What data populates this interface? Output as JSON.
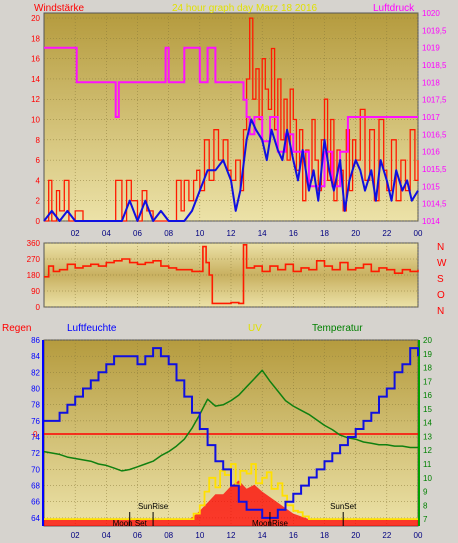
{
  "colors": {
    "background": "#d6d3ce",
    "plot_top": "#b8a048",
    "plot_bottom": "#e8dca0",
    "wind": "#ff1a00",
    "wind_avg": "#1010e0",
    "pressure": "#ff10ff",
    "direction": "#ff1a00",
    "humidity": "#1010e0",
    "temperature": "#108010",
    "uv": "#ffe000",
    "solar": "#ff0000",
    "rain_line": "#ff0000",
    "label_red": "#ff0000",
    "label_magenta": "#ff00ff",
    "label_blue": "#0000ff",
    "label_yellow": "#e0e000",
    "label_green": "#008000"
  },
  "header": {
    "wind_label": "Windstärke",
    "title": "24 hour graph day   Marz 18 2016",
    "pressure_label": "Luftdruck"
  },
  "compass": [
    "N",
    "W",
    "S",
    "O",
    "N"
  ],
  "bottom_header": {
    "rain_label": "Regen",
    "humidity_label": "Luftfeuchte",
    "uv_label": "UV",
    "temp_label": "Temperatur"
  },
  "annotations": {
    "moon_set": "Moon Set",
    "sun_rise": "SunRise",
    "moon_rise": "MoonRise",
    "sun_set": "SunSet",
    "rain_value": "0"
  },
  "chart_data": [
    {
      "type": "line",
      "name": "wind-pressure-panel",
      "title": "24 hour graph day   Marz 18 2016",
      "x_ticks": [
        "02",
        "04",
        "06",
        "08",
        "10",
        "12",
        "14",
        "16",
        "18",
        "20",
        "22",
        "00"
      ],
      "xlim": [
        0,
        24
      ],
      "y_left": {
        "label": "Windstärke",
        "ticks": [
          0,
          2,
          4,
          6,
          8,
          10,
          12,
          14,
          16,
          18,
          20
        ],
        "lim": [
          0,
          20.5
        ]
      },
      "y_right": {
        "label": "Luftdruck",
        "ticks": [
          "1014",
          "1014,5",
          "1015",
          "1015,5",
          "1016",
          "1016,5",
          "1017",
          "1017,5",
          "1018",
          "1018,5",
          "1019",
          "1019,5",
          "1020"
        ],
        "lim": [
          1014,
          1020
        ]
      },
      "series": [
        {
          "name": "wind",
          "axis": "left",
          "x": [
            0,
            0.3,
            0.5,
            0.8,
            1,
            1.3,
            1.6,
            2,
            2.5,
            3,
            3.5,
            4,
            4.3,
            4.6,
            5,
            5.3,
            5.6,
            6,
            6.3,
            6.6,
            7,
            7.5,
            8,
            8.5,
            8.8,
            9,
            9.3,
            9.6,
            9.8,
            10,
            10.3,
            10.6,
            10.9,
            11.2,
            11.5,
            11.8,
            12,
            12.3,
            12.6,
            12.8,
            13,
            13.2,
            13.4,
            13.6,
            13.8,
            14,
            14.2,
            14.4,
            14.6,
            14.8,
            15,
            15.2,
            15.4,
            15.6,
            15.8,
            16,
            16.2,
            16.4,
            16.6,
            16.8,
            17,
            17.2,
            17.4,
            17.6,
            17.8,
            18,
            18.2,
            18.4,
            18.6,
            18.8,
            19,
            19.2,
            19.4,
            19.6,
            19.8,
            20,
            20.3,
            20.6,
            20.9,
            21.2,
            21.5,
            21.8,
            22,
            22.3,
            22.6,
            22.9,
            23.2,
            23.5,
            23.8,
            24
          ],
          "values": [
            0,
            4,
            0,
            3,
            1,
            4,
            0,
            1,
            0,
            0,
            0,
            0,
            0,
            4,
            0,
            4,
            2,
            0,
            3,
            1,
            0,
            0,
            0,
            4,
            1,
            4,
            2,
            4,
            5,
            3,
            8,
            4,
            9,
            6,
            8,
            5,
            4,
            6,
            3,
            9,
            14,
            20,
            12,
            15,
            10,
            16,
            13,
            11,
            17,
            9,
            14,
            8,
            12,
            6,
            13,
            10,
            5,
            9,
            2,
            7,
            4,
            10,
            6,
            3,
            8,
            12,
            4,
            10,
            2,
            7,
            5,
            1,
            9,
            3,
            8,
            6,
            11,
            4,
            9,
            2,
            10,
            5,
            3,
            8,
            2,
            6,
            3,
            9,
            4,
            6
          ]
        },
        {
          "name": "wind-average",
          "axis": "left",
          "x": [
            0,
            0.5,
            1,
            1.5,
            2,
            3,
            4,
            4.5,
            5,
            5.5,
            6,
            6.5,
            7,
            7.5,
            8,
            8.5,
            9,
            9.5,
            10,
            10.5,
            11,
            11.5,
            12,
            12.3,
            12.6,
            13,
            13.3,
            13.6,
            14,
            14.3,
            14.6,
            15,
            15.3,
            15.6,
            16,
            16.3,
            16.6,
            17,
            17.3,
            17.6,
            18,
            18.3,
            18.6,
            19,
            19.3,
            19.6,
            20,
            20.3,
            20.6,
            21,
            21.3,
            21.6,
            22,
            22.3,
            22.6,
            23,
            23.3,
            23.6,
            24
          ],
          "values": [
            0,
            1,
            0,
            1,
            0,
            0,
            0,
            0,
            0,
            2,
            0,
            2,
            0,
            1,
            0,
            0,
            0,
            1,
            3,
            5,
            5,
            6,
            4,
            1,
            3,
            8,
            10,
            9,
            8,
            6,
            9,
            7,
            6,
            9,
            6,
            4,
            7,
            3,
            5,
            2,
            8,
            5,
            3,
            6,
            1,
            4,
            6,
            5,
            3,
            5,
            2,
            6,
            4,
            2,
            5,
            3,
            4,
            2,
            3
          ]
        },
        {
          "name": "pressure",
          "axis": "right",
          "x": [
            0,
            2,
            2.1,
            2.3,
            4.3,
            4.6,
            4.8,
            5.5,
            7.5,
            7.8,
            8,
            8.8,
            9,
            9.5,
            10,
            10.5,
            11,
            11.5,
            12,
            12.5,
            12.8,
            13,
            13.2,
            13.5,
            14,
            14.5,
            15,
            15.5,
            16,
            16.5,
            17,
            17.5,
            18,
            18.5,
            19,
            19.5,
            20,
            21,
            22,
            23,
            24
          ],
          "values": [
            1019,
            1019,
            1018,
            1018,
            1018,
            1017,
            1018,
            1018,
            1018,
            1019,
            1018,
            1018,
            1019,
            1019,
            1018,
            1019,
            1018,
            1018,
            1018,
            1018,
            1017.5,
            1017,
            1016.5,
            1017,
            1016.3,
            1017,
            1016,
            1016.5,
            1016,
            1016,
            1015,
            1015,
            1016,
            1015,
            1016,
            1017,
            1017,
            1017,
            1017,
            1017,
            1017
          ]
        }
      ]
    },
    {
      "type": "line",
      "name": "wind-direction-panel",
      "xlim": [
        0,
        24
      ],
      "y_left": {
        "ticks": [
          0,
          90,
          180,
          270,
          360
        ],
        "lim": [
          0,
          360
        ]
      },
      "y_right": {
        "ticks": [
          "N",
          "W",
          "S",
          "O",
          "N"
        ]
      },
      "series": [
        {
          "name": "direction",
          "x": [
            0,
            0.3,
            0.6,
            1,
            1.5,
            2,
            2.5,
            3,
            3.5,
            4,
            4.5,
            5,
            5.5,
            6,
            6.5,
            7,
            7.5,
            8,
            8.5,
            9,
            9.5,
            10,
            10.2,
            10.4,
            10.6,
            10.8,
            11,
            11.5,
            12,
            12.5,
            12.8,
            13,
            13.2,
            13.5,
            14,
            14.5,
            15,
            15.5,
            16,
            16.5,
            17,
            17.5,
            18,
            18.5,
            19,
            19.5,
            20,
            20.5,
            21,
            21.5,
            22,
            22.5,
            23,
            23.5,
            24
          ],
          "values": [
            170,
            230,
            200,
            210,
            240,
            220,
            230,
            240,
            230,
            250,
            260,
            270,
            250,
            240,
            250,
            260,
            230,
            220,
            210,
            210,
            200,
            200,
            340,
            250,
            180,
            20,
            20,
            20,
            25,
            20,
            350,
            220,
            220,
            230,
            200,
            230,
            210,
            240,
            200,
            220,
            210,
            260,
            230,
            210,
            250,
            210,
            220,
            240,
            200,
            220,
            210,
            190,
            210,
            200,
            210
          ]
        }
      ]
    },
    {
      "type": "line",
      "name": "humidity-temperature-uv-panel",
      "x_ticks": [
        "02",
        "04",
        "06",
        "08",
        "10",
        "12",
        "14",
        "16",
        "18",
        "20",
        "22",
        "00"
      ],
      "xlim": [
        0,
        24
      ],
      "y_left": {
        "label": "Luftfeuchte",
        "ticks": [
          64,
          66,
          68,
          70,
          72,
          74,
          76,
          78,
          80,
          82,
          84,
          86
        ],
        "lim": [
          63,
          86
        ]
      },
      "y_right": {
        "label": "Temperatur",
        "ticks": [
          7,
          8,
          9,
          10,
          11,
          12,
          13,
          14,
          15,
          16,
          17,
          18,
          19,
          20
        ],
        "lim": [
          6.5,
          20
        ]
      },
      "rain_axis": {
        "label": "Regen",
        "ticks": [
          "0"
        ]
      },
      "series": [
        {
          "name": "humidity",
          "axis": "left",
          "x": [
            0,
            0.5,
            1,
            1.5,
            2,
            2.5,
            3,
            3.5,
            4,
            4.5,
            5,
            5.5,
            6,
            6.5,
            7,
            7.5,
            8,
            8.5,
            9,
            9.5,
            10,
            10.5,
            11,
            11.5,
            12,
            12.5,
            13,
            13.5,
            14,
            14.5,
            15,
            15.5,
            16,
            16.5,
            17,
            17.5,
            18,
            18.5,
            19,
            19.5,
            20,
            20.5,
            21,
            21.5,
            22,
            22.5,
            23,
            23.5,
            24
          ],
          "values": [
            76,
            76,
            77,
            78,
            79,
            80,
            81,
            82,
            83,
            84,
            84,
            84,
            83,
            84,
            85,
            84,
            83,
            81,
            79,
            77,
            75,
            73,
            71,
            70,
            68,
            66,
            65,
            65,
            64,
            64,
            65,
            66,
            67,
            68,
            69,
            70,
            71,
            72,
            73,
            74,
            75,
            76,
            77,
            79,
            80,
            82,
            83,
            85,
            84
          ]
        },
        {
          "name": "temperature",
          "axis": "right",
          "x": [
            0,
            0.5,
            1,
            1.5,
            2,
            2.5,
            3,
            3.5,
            4,
            4.5,
            5,
            5.5,
            6,
            6.5,
            7,
            7.5,
            8,
            8.5,
            9,
            9.5,
            10,
            10.5,
            11,
            11.5,
            12,
            12.5,
            13,
            13.5,
            14,
            14.5,
            15,
            15.5,
            16,
            16.5,
            17,
            17.5,
            18,
            18.5,
            19,
            19.5,
            20,
            20.5,
            21,
            21.5,
            22,
            22.5,
            23,
            23.5,
            24
          ],
          "values": [
            11.9,
            11.8,
            11.7,
            11.5,
            11.4,
            11.3,
            11.2,
            11.0,
            10.9,
            10.7,
            10.5,
            10.6,
            10.8,
            11.0,
            11.2,
            11.6,
            11.9,
            12.3,
            12.8,
            13.6,
            14.6,
            15.7,
            15.2,
            15.3,
            15.6,
            16.0,
            16.6,
            17.2,
            17.8,
            17.0,
            16.3,
            15.6,
            15.2,
            14.9,
            14.6,
            14.2,
            13.8,
            13.5,
            13.1,
            12.9,
            12.8,
            12.6,
            12.5,
            12.4,
            12.4,
            12.3,
            12.3,
            12.2,
            12.2
          ]
        },
        {
          "name": "uv",
          "axis": "right",
          "x": [
            0,
            9.3,
            9.6,
            10,
            10.3,
            10.6,
            11,
            11.3,
            11.6,
            12,
            12.3,
            12.6,
            13,
            13.3,
            13.6,
            14,
            14.3,
            14.6,
            15,
            15.3,
            15.6,
            16,
            16.3,
            16.6,
            17,
            24
          ],
          "values": [
            7,
            7,
            7.4,
            8,
            9,
            10,
            9.3,
            10.5,
            10.2,
            11,
            9.5,
            10.5,
            10.3,
            11,
            9.6,
            10,
            10.4,
            9.2,
            9.6,
            8.7,
            8,
            7.6,
            7.5,
            7.2,
            7,
            7
          ]
        },
        {
          "name": "solar",
          "axis": "right",
          "x": [
            0,
            9.3,
            9.6,
            10,
            10.5,
            11,
            11.5,
            12,
            12.5,
            13,
            13.5,
            14,
            14.5,
            15,
            15.5,
            16,
            16.5,
            17,
            24
          ],
          "values": [
            7,
            7,
            7.2,
            7.6,
            8.2,
            8.8,
            8.8,
            9.4,
            9.8,
            9.2,
            9.5,
            9.0,
            8.6,
            8.2,
            7.8,
            7.4,
            7.2,
            7,
            7
          ]
        }
      ],
      "annotations": [
        {
          "label": "Moon Set",
          "x": 5.5
        },
        {
          "label": "SunRise",
          "x": 7.0
        },
        {
          "label": "MoonRise",
          "x": 14.5
        },
        {
          "label": "SunSet",
          "x": 19.2
        }
      ]
    }
  ]
}
